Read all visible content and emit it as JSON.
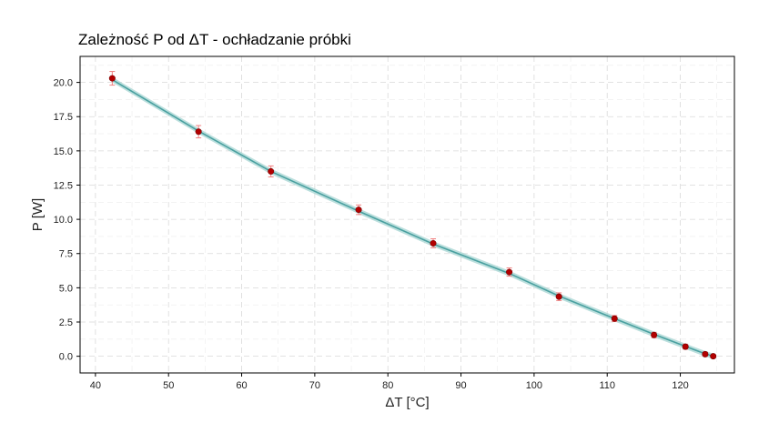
{
  "chart_data": {
    "type": "scatter",
    "title": "Zależność P od ΔT - ochładzanie próbki",
    "xlabel": "ΔT [°C]",
    "ylabel": "P [W]",
    "xlim": [
      37.9,
      127.4
    ],
    "ylim": [
      -1.22,
      21.9
    ],
    "x_ticks": [
      "40",
      "50",
      "60",
      "70",
      "80",
      "90",
      "100",
      "110",
      "120"
    ],
    "y_ticks": [
      "0.0",
      "2.5",
      "5.0",
      "7.5",
      "10.0",
      "12.5",
      "15.0",
      "17.5",
      "20.0"
    ],
    "x_tick_values": [
      40,
      50,
      60,
      70,
      80,
      90,
      100,
      110,
      120
    ],
    "y_tick_values": [
      0,
      2.5,
      5.0,
      7.5,
      10.0,
      12.5,
      15.0,
      17.5,
      20.0
    ],
    "grid": true,
    "series": [
      {
        "kind": "points_with_errorbars",
        "x": [
          42.3,
          54.1,
          64.0,
          76.0,
          86.2,
          96.6,
          103.4,
          111.0,
          116.4,
          120.7,
          123.4,
          124.5
        ],
        "y": [
          20.3,
          16.4,
          13.5,
          10.7,
          8.25,
          6.15,
          4.35,
          2.75,
          1.55,
          0.7,
          0.15,
          0.0
        ],
        "yerr": [
          0.5,
          0.45,
          0.4,
          0.35,
          0.33,
          0.3,
          0.28,
          0.22,
          0.2,
          0.18,
          0.15,
          0.1
        ]
      },
      {
        "kind": "fit_line",
        "x": [
          42.3,
          54.1,
          64.0,
          76.0,
          86.2,
          96.6,
          103.4,
          111.0,
          116.4,
          120.7,
          123.4,
          124.5
        ],
        "y": [
          20.2,
          16.45,
          13.5,
          10.6,
          8.2,
          6.05,
          4.4,
          2.75,
          1.6,
          0.72,
          0.18,
          0.0
        ]
      }
    ]
  },
  "colors": {
    "point": "#b30000",
    "errorbar": "#f08080",
    "fit_line": "#4aa0a0",
    "fit_band": "#9ed1cf",
    "grid": "#d9d9d9",
    "axis": "#000000"
  }
}
